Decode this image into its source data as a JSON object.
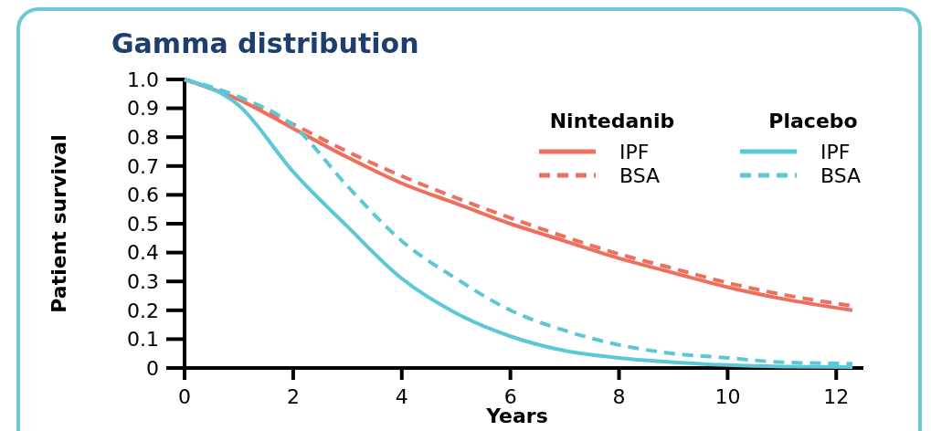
{
  "chart_data": {
    "type": "line",
    "title": "Gamma distribution",
    "xlabel": "Years",
    "ylabel": "Patient survival",
    "x": [
      0,
      1,
      2,
      3,
      4,
      5,
      6,
      7,
      8,
      9,
      10,
      11,
      12.3
    ],
    "series": [
      {
        "name": "IPF",
        "color": "#ef6f5e",
        "line_style": "solid",
        "values": [
          1.0,
          0.93,
          0.83,
          0.73,
          0.64,
          0.57,
          0.5,
          0.44,
          0.38,
          0.33,
          0.28,
          0.24,
          0.2
        ]
      },
      {
        "name": "BSA",
        "color": "#ef6f5e",
        "line_style": "dashed",
        "values": [
          1.0,
          0.935,
          0.845,
          0.75,
          0.665,
          0.59,
          0.52,
          0.455,
          0.395,
          0.345,
          0.295,
          0.255,
          0.215
        ]
      },
      {
        "name": "IPF",
        "color": "#5bc8d8",
        "line_style": "solid",
        "values": [
          1.0,
          0.91,
          0.68,
          0.49,
          0.31,
          0.19,
          0.11,
          0.06,
          0.035,
          0.02,
          0.01,
          0.005,
          0.003
        ]
      },
      {
        "name": "BSA",
        "color": "#5bc8d8",
        "line_style": "dashed",
        "values": [
          1.0,
          0.94,
          0.84,
          0.63,
          0.44,
          0.31,
          0.2,
          0.13,
          0.08,
          0.05,
          0.035,
          0.02,
          0.015
        ]
      }
    ],
    "annotations": [
      "Nintedanib",
      "Placebo"
    ],
    "xlim": [
      0,
      12.5
    ],
    "xticks": [
      0,
      2,
      4,
      6,
      8,
      10,
      12
    ],
    "ylim": [
      0,
      1
    ],
    "yticks": [
      {
        "value": 0,
        "label": "0"
      },
      0.1,
      0.2,
      0.3,
      0.4,
      0.5,
      0.6,
      0.7,
      0.8,
      0.9,
      {
        "value": 1,
        "label": "1.0"
      }
    ],
    "legend": "top right",
    "grid": false
  }
}
